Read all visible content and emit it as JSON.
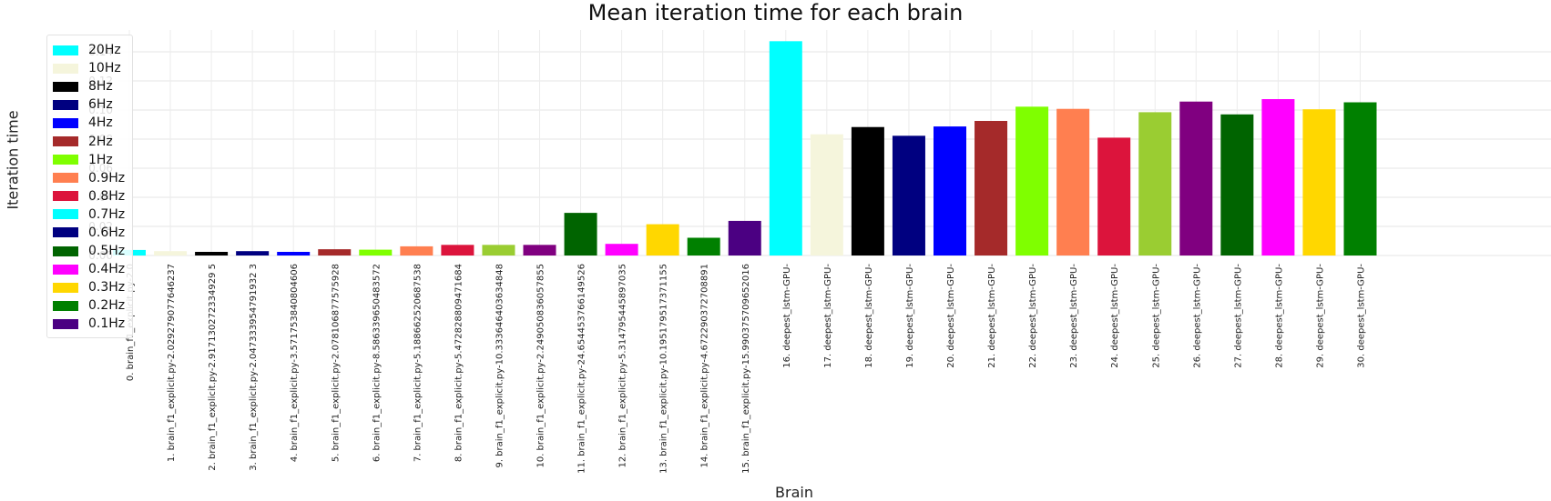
{
  "chart_data": {
    "type": "bar",
    "title": "Mean iteration time for each brain",
    "xlabel": "Brain",
    "ylabel": "Iteration time",
    "ylim": [
      0,
      0.155
    ],
    "yticks": [
      "0.00",
      "0.02",
      "0.04",
      "0.06",
      "0.08",
      "0.10",
      "0.12",
      "0.14"
    ],
    "grid": true,
    "legend_placement": "top-left",
    "categories": [
      "0. brain_f1_explicit.py-2.0",
      "1. brain_f1_explicit.py-2.029279077646237",
      "2. brain_f1_explicit.py-2.917130272334929 5",
      "3. brain_f1_explicit.py-2.047333954791932 3",
      "4. brain_f1_explicit.py-3.571753840804606",
      "5. brain_f1_explicit.py-2.078106877575928",
      "6. brain_f1_explicit.py-8.586339650483572",
      "7. brain_f1_explicit.py-5.188662520687538",
      "8. brain_f1_explicit.py-5.472828809471684",
      "9. brain_f1_explicit.py-10.333646403634848",
      "10. brain_f1_explicit.py-2.249050836057855",
      "11. brain_f1_explicit.py-24.654453766149526",
      "12. brain_f1_explicit.py-5.314795445897035",
      "13. brain_f1_explicit.py-10.195179517371155",
      "14. brain_f1_explicit.py-4.672290372708891",
      "15. brain_f1_explicit.py-15.990375709652016",
      "16. deepest_lstm-GPU-",
      "17. deepest_lstm-GPU-",
      "18. deepest_lstm-GPU-",
      "19. deepest_lstm-GPU-",
      "20. deepest_lstm-GPU-",
      "21. deepest_lstm-GPU-",
      "22. deepest_lstm-GPU-",
      "23. deepest_lstm-GPU-",
      "24. deepest_lstm-GPU-",
      "25. deepest_lstm-GPU-",
      "26. deepest_lstm-GPU-",
      "27. deepest_lstm-GPU-",
      "28. deepest_lstm-GPU-",
      "29. deepest_lstm-GPU-",
      "30. deepest_lstm-GPU-"
    ],
    "values": [
      0.0038,
      0.003,
      0.0025,
      0.003,
      0.0025,
      0.0043,
      0.004,
      0.0063,
      0.0073,
      0.0073,
      0.0073,
      0.0293,
      0.008,
      0.0215,
      0.0122,
      0.0238,
      0.1473,
      0.0833,
      0.0883,
      0.0823,
      0.0887,
      0.0925,
      0.1023,
      0.1008,
      0.081,
      0.0985,
      0.1058,
      0.097,
      0.1075,
      0.1005,
      0.1053
    ],
    "colors": [
      "#00FFFF",
      "#F5F5DC",
      "#000000",
      "#000080",
      "#0000FF",
      "#A52A2A",
      "#7FFF00",
      "#FF7F50",
      "#DC143C",
      "#9ACD32",
      "#800080",
      "#006400",
      "#FF00FF",
      "#FFD700",
      "#008000",
      "#4B0082",
      "#00FFFF",
      "#F5F5DC",
      "#000000",
      "#000080",
      "#0000FF",
      "#A52A2A",
      "#7FFF00",
      "#FF7F50",
      "#DC143C",
      "#9ACD32",
      "#800080",
      "#006400",
      "#FF00FF",
      "#FFD700",
      "#008000"
    ],
    "legend": [
      {
        "label": "20Hz",
        "color": "#00FFFF"
      },
      {
        "label": "10Hz",
        "color": "#F5F5DC"
      },
      {
        "label": "8Hz",
        "color": "#000000"
      },
      {
        "label": "6Hz",
        "color": "#000080"
      },
      {
        "label": "4Hz",
        "color": "#0000FF"
      },
      {
        "label": "2Hz",
        "color": "#A52A2A"
      },
      {
        "label": "1Hz",
        "color": "#7FFF00"
      },
      {
        "label": "0.9Hz",
        "color": "#FF7F50"
      },
      {
        "label": "0.8Hz",
        "color": "#DC143C"
      },
      {
        "label": "0.7Hz",
        "color": "#00FFFF"
      },
      {
        "label": "0.6Hz",
        "color": "#000080"
      },
      {
        "label": "0.5Hz",
        "color": "#006400"
      },
      {
        "label": "0.4Hz",
        "color": "#FF00FF"
      },
      {
        "label": "0.3Hz",
        "color": "#FFD700"
      },
      {
        "label": "0.2Hz",
        "color": "#008000"
      },
      {
        "label": "0.1Hz",
        "color": "#4B0082"
      }
    ]
  }
}
